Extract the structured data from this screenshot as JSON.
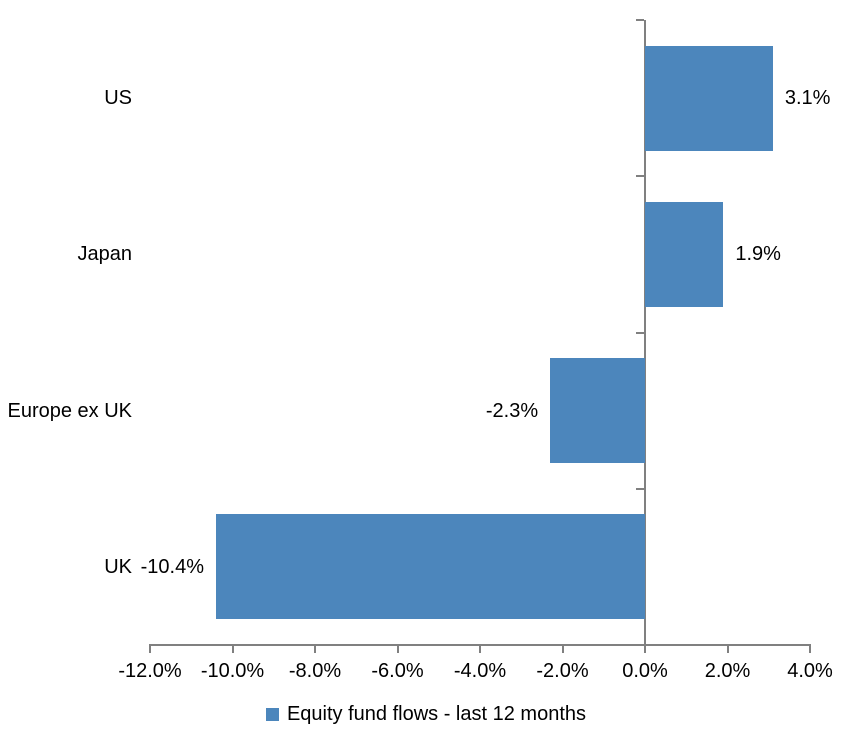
{
  "chart_data": {
    "type": "bar",
    "orientation": "horizontal",
    "title": "",
    "categories": [
      "US",
      "Japan",
      "Europe ex UK",
      "UK"
    ],
    "values": [
      3.1,
      1.9,
      -2.3,
      -10.4
    ],
    "value_labels": [
      "3.1%",
      "1.9%",
      "-2.3%",
      "-10.4%"
    ],
    "series_name": "Equity fund flows - last 12 months",
    "xlabel": "",
    "ylabel": "",
    "xlim": [
      -12,
      4
    ],
    "x_ticks": [
      -12,
      -10,
      -8,
      -6,
      -4,
      -2,
      0,
      2,
      4
    ],
    "x_tick_labels": [
      "-12.0%",
      "-10.0%",
      "-8.0%",
      "-6.0%",
      "-4.0%",
      "-2.0%",
      "0.0%",
      "2.0%",
      "4.0%"
    ],
    "grid": "off",
    "legend_position": "bottom",
    "colors": {
      "bar": "#4C86BC",
      "axis": "#808080",
      "text": "#000000",
      "background": "#ffffff"
    }
  },
  "legend": {
    "label": "Equity fund flows - last 12 months"
  }
}
